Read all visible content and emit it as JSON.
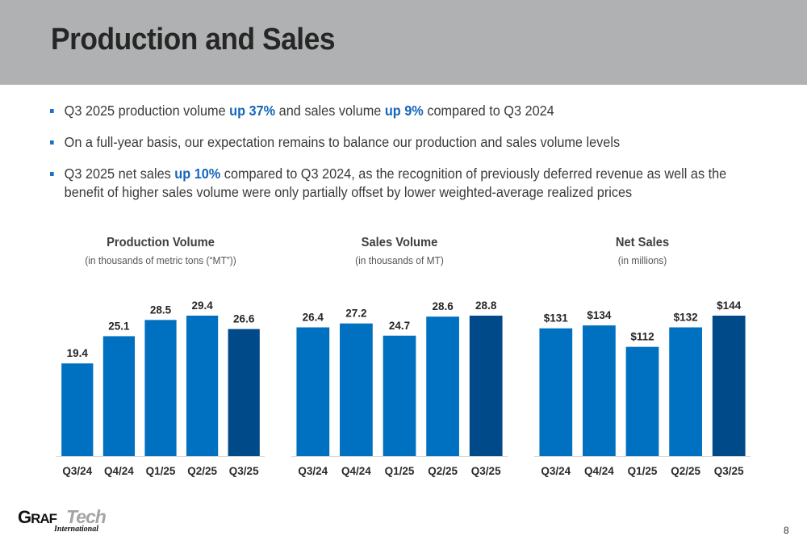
{
  "page": {
    "title": "Production and Sales",
    "page_number": "8"
  },
  "bullets": [
    {
      "parts": [
        {
          "text": "Q3 2025 production volume ",
          "highlight": false
        },
        {
          "text": "up 37%",
          "highlight": true
        },
        {
          "text": " and sales volume ",
          "highlight": false
        },
        {
          "text": "up 9%",
          "highlight": true
        },
        {
          "text": " compared to Q3 2024",
          "highlight": false
        }
      ]
    },
    {
      "parts": [
        {
          "text": "On a full-year basis, our expectation remains to balance our production and sales volume levels",
          "highlight": false
        }
      ]
    },
    {
      "parts": [
        {
          "text": "Q3 2025 net sales ",
          "highlight": false
        },
        {
          "text": "up 10%",
          "highlight": true
        },
        {
          "text": " compared to Q3 2024, as the recognition of previously deferred revenue as well as the benefit of higher sales volume were only partially offset by lower weighted-average realized prices",
          "highlight": false
        }
      ]
    }
  ],
  "colors": {
    "bar": "#0070c0",
    "bar_highlight": "#004a8a",
    "axis": "#d9d9d9",
    "accent_text": "#1566b8",
    "header_band": "#b0b1b3"
  },
  "chart_data": [
    {
      "type": "bar",
      "title": "Production Volume",
      "subtitle": "(in thousands of metric tons (“MT”))",
      "categories": [
        "Q3/24",
        "Q4/24",
        "Q1/25",
        "Q2/25",
        "Q3/25"
      ],
      "values": [
        19.4,
        25.1,
        28.5,
        29.4,
        26.6
      ],
      "value_labels": [
        "19.4",
        "25.1",
        "28.5",
        "29.4",
        "26.6"
      ],
      "highlight_index": 4,
      "xlabel": "",
      "ylabel": "",
      "ylim": [
        0,
        29.4
      ],
      "grid": false,
      "legend": "none"
    },
    {
      "type": "bar",
      "title": "Sales Volume",
      "subtitle": "(in thousands of MT)",
      "categories": [
        "Q3/24",
        "Q4/24",
        "Q1/25",
        "Q2/25",
        "Q3/25"
      ],
      "values": [
        26.4,
        27.2,
        24.7,
        28.6,
        28.8
      ],
      "value_labels": [
        "26.4",
        "27.2",
        "24.7",
        "28.6",
        "28.8"
      ],
      "highlight_index": 4,
      "xlabel": "",
      "ylabel": "",
      "ylim": [
        0,
        28.8
      ],
      "grid": false,
      "legend": "none"
    },
    {
      "type": "bar",
      "title": "Net Sales",
      "subtitle": "(in millions)",
      "categories": [
        "Q3/24",
        "Q4/24",
        "Q1/25",
        "Q2/25",
        "Q3/25"
      ],
      "values": [
        131,
        134,
        112,
        132,
        144
      ],
      "value_labels": [
        "$131",
        "$134",
        "$112",
        "$132",
        "$144"
      ],
      "highlight_index": 4,
      "xlabel": "",
      "ylabel": "",
      "ylim": [
        0,
        144
      ],
      "grid": false,
      "legend": "none"
    }
  ],
  "logo": {
    "graf_cap": "G",
    "graf_rest": "RAF",
    "tech": "Tech",
    "international": "International"
  }
}
